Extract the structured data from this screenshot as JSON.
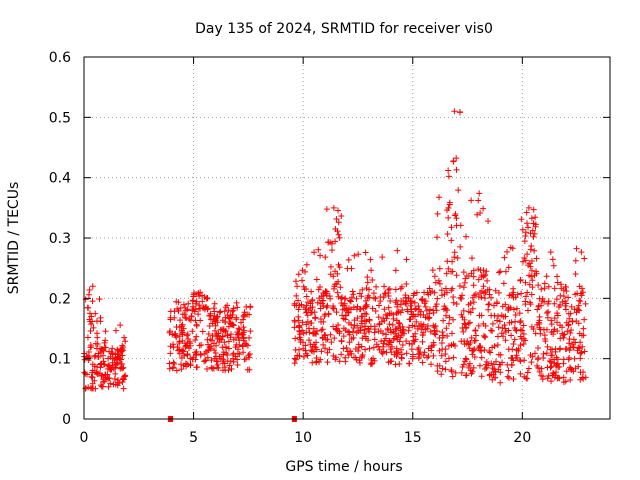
{
  "chart_data": {
    "type": "scatter",
    "title": "Day 135 of 2024, SRMTID for receiver vis0",
    "xlabel": "GPS time / hours",
    "ylabel": "SRMTID / TECUs",
    "xlim": [
      0,
      24
    ],
    "ylim": [
      0,
      0.6
    ],
    "xticks": [
      0,
      5,
      10,
      15,
      20
    ],
    "yticks": [
      0,
      0.1,
      0.2,
      0.3,
      0.4,
      0.5,
      0.6
    ],
    "xtick_labels": [
      "0",
      "5",
      "10",
      "15",
      "20"
    ],
    "ytick_labels": [
      "0",
      "0.1",
      "0.2",
      "0.3",
      "0.4",
      "0.5",
      "0.6"
    ],
    "grid": true,
    "marker": "+",
    "series_color": "#ff0000",
    "series": [
      {
        "name": "vis0",
        "segments": [
          {
            "x_start": 0.0,
            "x_end": 1.9,
            "y_low": 0.05,
            "y_high": 0.12,
            "peak": 0.22,
            "peak_at": 0.4
          },
          {
            "x_start": 3.9,
            "x_end": 7.6,
            "y_low": 0.08,
            "y_high": 0.18,
            "peak": 0.21,
            "peak_at": 5.3
          },
          {
            "x_start": 9.6,
            "x_end": 16.0,
            "y_low": 0.09,
            "y_high": 0.22,
            "peak": 0.35,
            "peak_at": 11.4
          },
          {
            "x_start": 16.0,
            "x_end": 18.5,
            "y_low": 0.07,
            "y_high": 0.25,
            "peak": 0.51,
            "peak_at": 16.9
          },
          {
            "x_start": 18.5,
            "x_end": 22.9,
            "y_low": 0.06,
            "y_high": 0.22,
            "peak": 0.35,
            "peak_at": 20.3
          }
        ],
        "zero_points": [
          [
            3.95,
            0.0
          ],
          [
            9.6,
            0.0
          ]
        ]
      }
    ]
  }
}
